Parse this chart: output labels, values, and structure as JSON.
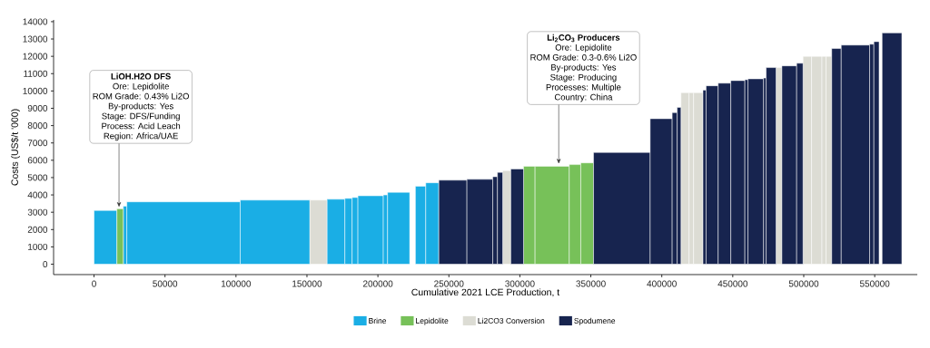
{
  "chart_data": {
    "type": "histogram",
    "xlabel": "Cumulative 2021 LCE Production, t",
    "ylabel": "Costs (US$/t '000)",
    "bins": [
      0,
      16100,
      20600,
      23100,
      103000,
      152100,
      164100,
      176700,
      181800,
      185900,
      203800,
      206800,
      222400,
      226400,
      233700,
      242900,
      262700,
      280900,
      284200,
      287900,
      293600,
      302600,
      310700,
      334800,
      342900,
      351900,
      391800,
      407300,
      410800,
      413500,
      419200,
      422400,
      429000,
      431200,
      439700,
      448600,
      458500,
      460700,
      471700,
      473500,
      480500,
      484600,
      495000,
      499500,
      505500,
      512800,
      515700,
      519700,
      526400,
      546400,
      549400,
      553100,
      555200,
      569100
    ],
    "series": [
      {
        "name": "Brine",
        "color": "#1aaee5",
        "values": [
          3100,
          null,
          3350,
          3600,
          3700,
          null,
          3750,
          3800,
          3850,
          3950,
          4000,
          4150,
          null,
          4500,
          4700,
          null,
          null,
          null,
          null,
          null,
          null,
          null,
          null,
          null,
          null,
          null,
          null,
          null,
          null,
          null,
          null,
          null,
          null,
          null,
          null,
          null,
          null,
          null,
          null,
          null,
          null,
          null,
          null,
          null,
          null,
          null,
          null,
          null,
          null,
          null,
          null,
          null,
          null
        ]
      },
      {
        "name": "Lepidolite",
        "color": "#77c159",
        "values": [
          null,
          3200,
          null,
          null,
          null,
          null,
          null,
          null,
          null,
          null,
          null,
          null,
          null,
          null,
          null,
          null,
          null,
          null,
          null,
          null,
          null,
          5650,
          5650,
          5750,
          5850,
          null,
          null,
          null,
          null,
          null,
          null,
          null,
          null,
          null,
          null,
          null,
          null,
          null,
          null,
          null,
          null,
          null,
          null,
          null,
          null,
          null,
          null,
          null,
          null,
          null,
          null,
          null,
          null
        ]
      },
      {
        "name": "Li2CO3 Conversion",
        "color": "#dcdcd4",
        "values": [
          null,
          null,
          null,
          null,
          null,
          3700,
          null,
          null,
          null,
          null,
          null,
          null,
          null,
          null,
          null,
          null,
          null,
          null,
          null,
          5400,
          null,
          null,
          null,
          null,
          null,
          null,
          null,
          null,
          null,
          9900,
          9900,
          9900,
          null,
          null,
          null,
          null,
          null,
          null,
          null,
          null,
          11350,
          null,
          null,
          12000,
          12000,
          12000,
          12000,
          null,
          null,
          null,
          null,
          null,
          null
        ]
      },
      {
        "name": "Spodumene",
        "color": "#17244f",
        "values": [
          null,
          null,
          null,
          null,
          null,
          null,
          null,
          null,
          null,
          null,
          null,
          null,
          null,
          null,
          null,
          4850,
          4900,
          5050,
          5300,
          null,
          5500,
          null,
          null,
          null,
          null,
          6450,
          8400,
          8750,
          9050,
          null,
          null,
          null,
          10050,
          10300,
          10450,
          10600,
          10650,
          10700,
          10750,
          11350,
          null,
          11450,
          11600,
          null,
          null,
          null,
          null,
          12450,
          12650,
          12700,
          12850,
          null,
          13350
        ]
      }
    ],
    "xlim": [
      -28500,
      580000
    ],
    "ylim": [
      -600,
      14100
    ],
    "xticks": [
      0,
      50000,
      100000,
      150000,
      200000,
      250000,
      300000,
      350000,
      400000,
      450000,
      500000,
      550000
    ],
    "yticks": [
      0,
      1000,
      2000,
      3000,
      4000,
      5000,
      6000,
      7000,
      8000,
      9000,
      10000,
      11000,
      12000,
      13000,
      14000
    ],
    "grid": false,
    "legend": "bottom",
    "annotations": [
      "LiOH.H2O DFS",
      "Ore: Lepidolite",
      "ROM Grade: 0.43% Li2O",
      "By-products: Yes",
      "Stage: DFS/Funding",
      "Process: Acid Leach",
      "Region: Africa/UAE",
      "Li$_{2}$CO$_{3}$ Producers",
      "Ore: Lepidolite",
      "ROM Grade: 0.3-0.6% Li2O",
      "By-products: Yes",
      "Stage: Producing",
      "Processes: Multiple",
      "Country: China"
    ]
  }
}
